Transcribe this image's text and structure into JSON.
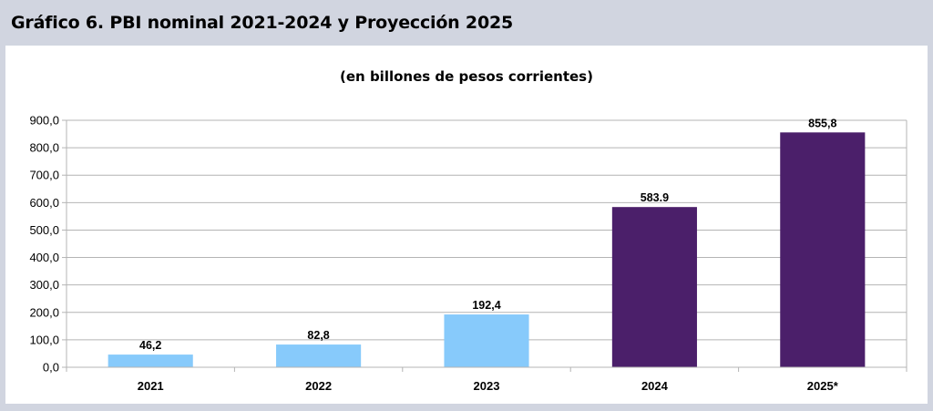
{
  "header": {
    "title": "Gráfico 6. PBI nominal 2021-2024 y Proyección 2025"
  },
  "chart_data": {
    "type": "bar",
    "title": "Gráfico 6. PBI nominal 2021-2024 y Proyección 2025",
    "subtitle": "(en billones de pesos corrientes)",
    "categories": [
      "2021",
      "2022",
      "2023",
      "2024",
      "2025*"
    ],
    "values": [
      46.2,
      82.8,
      192.4,
      583.9,
      855.8
    ],
    "data_labels": [
      "46,2",
      "82,8",
      "192,4",
      "583.9",
      "855,8"
    ],
    "bar_colors": [
      "#87cafb",
      "#87cafb",
      "#87cafb",
      "#4b1f6a",
      "#4b1f6a"
    ],
    "ylim": [
      0,
      900
    ],
    "yticks": [
      0,
      100,
      200,
      300,
      400,
      500,
      600,
      700,
      800,
      900
    ],
    "ytick_labels": [
      "0,0",
      "100,0",
      "200,0",
      "300,0",
      "400,0",
      "500,0",
      "600,0",
      "700,0",
      "800,0",
      "900,0"
    ],
    "grid": true,
    "legend": "none",
    "xlabel": "",
    "ylabel": ""
  },
  "colors": {
    "background": "#d1d5e0",
    "panel": "#ffffff",
    "gridline": "#b4b4b4"
  }
}
